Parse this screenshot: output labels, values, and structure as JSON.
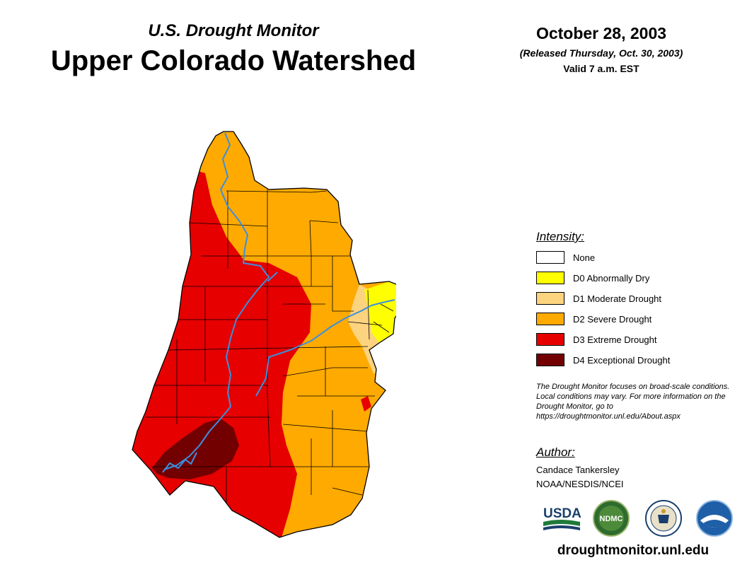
{
  "header": {
    "subtitle": "U.S. Drought Monitor",
    "title": "Upper Colorado Watershed",
    "date": "October 28, 2003",
    "released": "(Released Thursday, Oct. 30, 2003)",
    "valid": "Valid 7 a.m. EST"
  },
  "legend": {
    "heading": "Intensity:",
    "items": [
      {
        "label": "None",
        "color": "#ffffff"
      },
      {
        "label": "D0 Abnormally Dry",
        "color": "#ffff00"
      },
      {
        "label": "D1 Moderate Drought",
        "color": "#fcd37f"
      },
      {
        "label": "D2 Severe Drought",
        "color": "#ffaa00"
      },
      {
        "label": "D3 Extreme Drought",
        "color": "#e60000"
      },
      {
        "label": "D4 Exceptional Drought",
        "color": "#730000"
      }
    ]
  },
  "disclaimer": "The Drought Monitor focuses on broad-scale conditions. Local conditions may vary. For more information on the Drought Monitor, go to https://droughtmonitor.unl.edu/About.aspx",
  "author": {
    "heading": "Author:",
    "name": "Candace Tankersley",
    "org": "NOAA/NESDIS/NCEI"
  },
  "logos": [
    "USDA",
    "NDMC",
    "DOC",
    "NOAA"
  ],
  "site_url": "droughtmonitor.unl.edu",
  "colors": {
    "river": "#3b8fe0",
    "boundary": "#000000"
  }
}
